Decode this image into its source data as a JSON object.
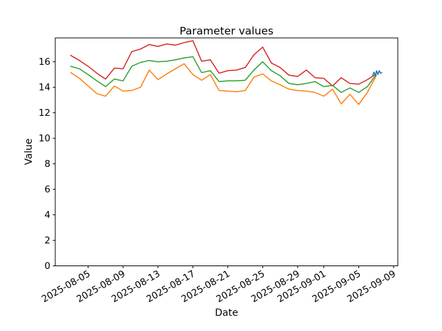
{
  "title": "Parameter values",
  "axes": {
    "xlabel": "Date",
    "ylabel": "Value"
  },
  "chart_data": {
    "type": "line",
    "title": "Parameter values",
    "xlabel": "Date",
    "ylabel": "Value",
    "grid": false,
    "legend": false,
    "background": "#ffffff",
    "axis_color": "#000000",
    "ylim": [
      0,
      17.87
    ],
    "y_ticks": [
      0,
      2,
      4,
      6,
      8,
      10,
      12,
      14,
      16
    ],
    "xlim_day_offsets": [
      -1.77,
      37.48
    ],
    "x_ticks": [
      {
        "label": "2025-08-05",
        "day_offset": 2
      },
      {
        "label": "2025-08-09",
        "day_offset": 6
      },
      {
        "label": "2025-08-13",
        "day_offset": 10
      },
      {
        "label": "2025-08-17",
        "day_offset": 14
      },
      {
        "label": "2025-08-21",
        "day_offset": 18
      },
      {
        "label": "2025-08-25",
        "day_offset": 22
      },
      {
        "label": "2025-08-29",
        "day_offset": 26
      },
      {
        "label": "2025-09-01",
        "day_offset": 29
      },
      {
        "label": "2025-09-05",
        "day_offset": 33
      },
      {
        "label": "2025-09-09",
        "day_offset": 37
      }
    ],
    "x_dates": [
      "2025-08-03",
      "2025-08-04",
      "2025-08-05",
      "2025-08-06",
      "2025-08-07",
      "2025-08-08",
      "2025-08-09",
      "2025-08-10",
      "2025-08-11",
      "2025-08-12",
      "2025-08-13",
      "2025-08-14",
      "2025-08-15",
      "2025-08-16",
      "2025-08-17",
      "2025-08-18",
      "2025-08-19",
      "2025-08-20",
      "2025-08-21",
      "2025-08-22",
      "2025-08-23",
      "2025-08-24",
      "2025-08-25",
      "2025-08-26",
      "2025-08-27",
      "2025-08-28",
      "2025-08-29",
      "2025-08-30",
      "2025-08-31",
      "2025-09-01",
      "2025-09-02",
      "2025-09-03",
      "2025-09-04",
      "2025-09-05",
      "2025-09-06",
      "2025-09-07"
    ],
    "series": [
      {
        "name": "red",
        "color": "#d62728",
        "start_day_offset": 0,
        "values": [
          16.5,
          16.1,
          15.65,
          15.1,
          14.65,
          15.5,
          15.45,
          16.8,
          17.0,
          17.35,
          17.2,
          17.4,
          17.3,
          17.5,
          17.65,
          16.05,
          16.15,
          15.1,
          15.3,
          15.35,
          15.55,
          16.55,
          17.15,
          15.9,
          15.55,
          14.95,
          14.85,
          15.35,
          14.75,
          14.7,
          14.1,
          14.75,
          14.3,
          14.25,
          14.6,
          15.05
        ]
      },
      {
        "name": "green",
        "color": "#2ca02c",
        "start_day_offset": 0,
        "values": [
          15.65,
          15.45,
          15.0,
          14.5,
          14.05,
          14.65,
          14.5,
          15.65,
          15.95,
          16.1,
          16.0,
          16.05,
          16.15,
          16.3,
          16.4,
          15.15,
          15.3,
          14.45,
          14.5,
          14.5,
          14.55,
          15.35,
          16.0,
          15.3,
          14.9,
          14.3,
          14.2,
          14.3,
          14.45,
          14.05,
          14.15,
          13.6,
          13.95,
          13.6,
          14.05,
          15.0
        ]
      },
      {
        "name": "orange",
        "color": "#ff7f0e",
        "start_day_offset": 0,
        "values": [
          15.15,
          14.7,
          14.1,
          13.5,
          13.3,
          14.1,
          13.7,
          13.75,
          14.0,
          15.35,
          14.6,
          15.05,
          15.45,
          15.85,
          15.0,
          14.55,
          15.0,
          13.75,
          13.7,
          13.65,
          13.75,
          14.8,
          15.05,
          14.5,
          14.2,
          13.85,
          13.75,
          13.7,
          13.6,
          13.3,
          13.85,
          12.7,
          13.45,
          12.65,
          13.6,
          14.9
        ]
      },
      {
        "name": "blue",
        "color": "#1f77b4",
        "x_day_offsets": [
          34.6,
          34.75,
          34.9,
          35.05,
          35.2,
          35.35,
          35.5,
          35.65
        ],
        "values": [
          14.95,
          15.2,
          14.9,
          15.3,
          15.0,
          15.3,
          15.1,
          15.15
        ]
      }
    ]
  }
}
